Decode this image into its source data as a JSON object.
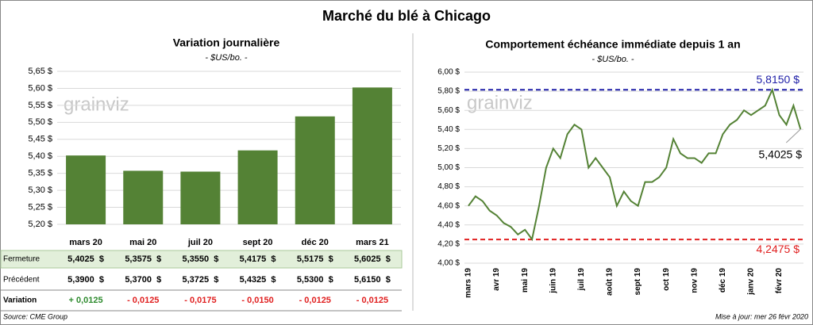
{
  "title": "Marché du blé à Chicago",
  "logo": "grainviz",
  "chart_data": [
    {
      "type": "bar",
      "title": "Variation journalière",
      "subtitle": "- $US/bo. -",
      "categories": [
        "mars 20",
        "mai 20",
        "juil 20",
        "sept 20",
        "déc 20",
        "mars 21"
      ],
      "values": [
        5.4025,
        5.3575,
        5.355,
        5.4175,
        5.5175,
        5.6025
      ],
      "color": "#548235",
      "ylim": [
        5.2,
        5.65
      ],
      "yticks": [
        {
          "value": 5.2,
          "label": "5,20 $"
        },
        {
          "value": 5.25,
          "label": "5,25 $"
        },
        {
          "value": 5.3,
          "label": "5,30 $"
        },
        {
          "value": 5.35,
          "label": "5,35 $"
        },
        {
          "value": 5.4,
          "label": "5,40 $"
        },
        {
          "value": 5.45,
          "label": "5,45 $"
        },
        {
          "value": 5.5,
          "label": "5,50 $"
        },
        {
          "value": 5.55,
          "label": "5,55 $"
        },
        {
          "value": 5.6,
          "label": "5,60 $"
        },
        {
          "value": 5.65,
          "label": "5,65 $"
        }
      ],
      "grid": true
    },
    {
      "type": "line",
      "title": "Comportement  échéance immédiate depuis 1 an",
      "subtitle": "- $US/bo. -",
      "categories": [
        "mars 19",
        null,
        null,
        null,
        "avr 19",
        null,
        null,
        null,
        "mai 19",
        null,
        null,
        null,
        "juin 19",
        null,
        null,
        null,
        "juil 19",
        null,
        null,
        null,
        "août 19",
        null,
        null,
        null,
        "sept 19",
        null,
        null,
        null,
        "oct 19",
        null,
        null,
        null,
        "nov 19",
        null,
        null,
        null,
        "déc 19",
        null,
        null,
        null,
        "janv 20",
        null,
        null,
        null,
        "févr 20",
        null,
        null,
        null
      ],
      "values": [
        4.6,
        4.7,
        4.65,
        4.55,
        4.5,
        4.42,
        4.38,
        4.3,
        4.35,
        4.25,
        4.6,
        5.0,
        5.2,
        5.1,
        5.35,
        5.45,
        5.4,
        5.0,
        5.1,
        5.0,
        4.9,
        4.6,
        4.75,
        4.65,
        4.6,
        4.85,
        4.85,
        4.9,
        5.0,
        5.3,
        5.15,
        5.1,
        5.1,
        5.05,
        5.15,
        5.15,
        5.35,
        5.45,
        5.5,
        5.6,
        5.55,
        5.6,
        5.65,
        5.815,
        5.55,
        5.45,
        5.65,
        5.4025
      ],
      "color": "#548235",
      "ylim": [
        4.0,
        6.0
      ],
      "yticks": [
        {
          "value": 4.0,
          "label": "4,00 $"
        },
        {
          "value": 4.2,
          "label": "4,20 $"
        },
        {
          "value": 4.4,
          "label": "4,40 $"
        },
        {
          "value": 4.6,
          "label": "4,60 $"
        },
        {
          "value": 4.8,
          "label": "4,80 $"
        },
        {
          "value": 5.0,
          "label": "5,00 $"
        },
        {
          "value": 5.2,
          "label": "5,20 $"
        },
        {
          "value": 5.4,
          "label": "5,40 $"
        },
        {
          "value": 5.6,
          "label": "5,60 $"
        },
        {
          "value": 5.8,
          "label": "5,80 $"
        },
        {
          "value": 6.0,
          "label": "6,00 $"
        }
      ],
      "grid": true,
      "hlines": [
        {
          "value": 5.815,
          "label": "5,8150 $",
          "color": "#2020a8"
        },
        {
          "value": 4.2475,
          "label": "4,2475 $",
          "color": "#e02020"
        }
      ],
      "annotations": [
        {
          "value": 5.4025,
          "label": "5,4025 $"
        }
      ]
    }
  ],
  "table": {
    "rows": [
      {
        "label": "Fermeture",
        "cells": [
          "5,4025  $",
          "5,3575  $",
          "5,3550  $",
          "5,4175  $",
          "5,5175  $",
          "5,6025  $"
        ],
        "colors": [
          "#000",
          "#000",
          "#000",
          "#000",
          "#000",
          "#000"
        ]
      },
      {
        "label": "Précédent",
        "cells": [
          "5,3900  $",
          "5,3700  $",
          "5,3725  $",
          "5,4325  $",
          "5,5300  $",
          "5,6150  $"
        ],
        "colors": [
          "#000",
          "#000",
          "#000",
          "#000",
          "#000",
          "#000"
        ]
      },
      {
        "label": "Variation",
        "cells": [
          "+ 0,0125",
          "- 0,0125",
          "- 0,0175",
          "- 0,0150",
          "- 0,0125",
          "- 0,0125"
        ],
        "colors": [
          "#2e8b2e",
          "#e02020",
          "#e02020",
          "#e02020",
          "#e02020",
          "#e02020"
        ]
      }
    ]
  },
  "source": "Source: CME Group",
  "updated": "Mise à jour: mer 26 févr 2020"
}
